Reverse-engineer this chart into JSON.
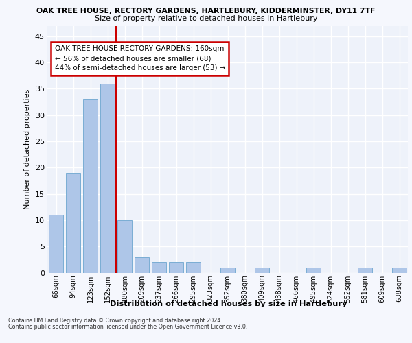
{
  "title1": "OAK TREE HOUSE, RECTORY GARDENS, HARTLEBURY, KIDDERMINSTER, DY11 7TF",
  "title2": "Size of property relative to detached houses in Hartlebury",
  "xlabel": "Distribution of detached houses by size in Hartlebury",
  "ylabel": "Number of detached properties",
  "categories": [
    "66sqm",
    "94sqm",
    "123sqm",
    "152sqm",
    "180sqm",
    "209sqm",
    "237sqm",
    "266sqm",
    "295sqm",
    "323sqm",
    "352sqm",
    "380sqm",
    "409sqm",
    "438sqm",
    "466sqm",
    "495sqm",
    "524sqm",
    "552sqm",
    "581sqm",
    "609sqm",
    "638sqm"
  ],
  "values": [
    11,
    19,
    33,
    36,
    10,
    3,
    2,
    2,
    2,
    0,
    1,
    0,
    1,
    0,
    0,
    1,
    0,
    0,
    1,
    0,
    1
  ],
  "bar_color": "#aec6e8",
  "bar_edge_color": "#7aadd4",
  "annotation_title": "OAK TREE HOUSE RECTORY GARDENS: 160sqm",
  "annotation_line1": "← 56% of detached houses are smaller (68)",
  "annotation_line2": "44% of semi-detached houses are larger (53) →",
  "annotation_box_facecolor": "#ffffff",
  "annotation_box_edgecolor": "#cc0000",
  "redline_x": 3.5,
  "ylim": [
    0,
    47
  ],
  "yticks": [
    0,
    5,
    10,
    15,
    20,
    25,
    30,
    35,
    40,
    45
  ],
  "footer1": "Contains HM Land Registry data © Crown copyright and database right 2024.",
  "footer2": "Contains public sector information licensed under the Open Government Licence v3.0.",
  "bg_color": "#eef2fa",
  "grid_color": "#ffffff",
  "fig_bg": "#f5f7fd"
}
